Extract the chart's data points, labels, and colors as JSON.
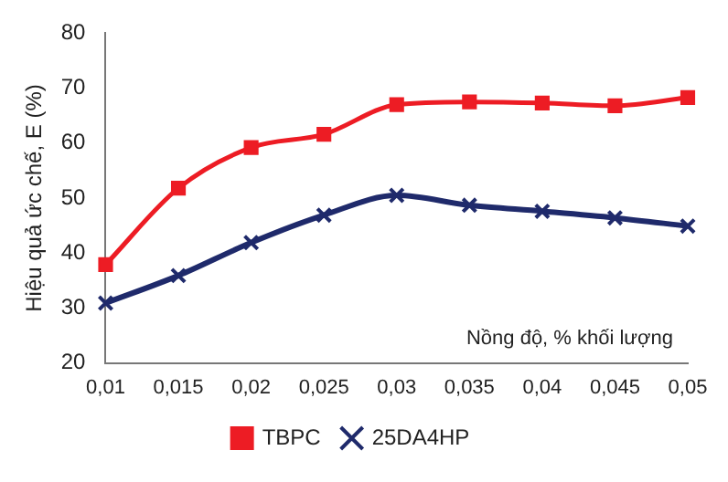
{
  "chart_data": {
    "type": "line",
    "xlabel": "Nồng độ, % khối lượng",
    "ylabel": "Hiệu quả ức chế, E (%)",
    "x": [
      0.01,
      0.015,
      0.02,
      0.025,
      0.03,
      0.035,
      0.04,
      0.045,
      0.05
    ],
    "series": [
      {
        "name": "TBPC",
        "color": "#ed1c24",
        "marker": "square",
        "values": [
          37.9,
          51.8,
          59.2,
          61.6,
          67,
          67.5,
          67.3,
          66.8,
          68.3
        ]
      },
      {
        "name": "25DA4HP",
        "color": "#1f2a6b",
        "marker": "cross",
        "values": [
          30.9,
          35.9,
          41.9,
          46.9,
          50.5,
          48.7,
          47.6,
          46.4,
          44.9
        ]
      }
    ],
    "xlim": [
      0.01,
      0.05
    ],
    "xticks": [
      {
        "value": 0.01,
        "label": "0,01"
      },
      {
        "value": 0.015,
        "label": "0,015"
      },
      {
        "value": 0.02,
        "label": "0,02"
      },
      {
        "value": 0.025,
        "label": "0,025"
      },
      {
        "value": 0.03,
        "label": "0,03"
      },
      {
        "value": 0.035,
        "label": "0,035"
      },
      {
        "value": 0.04,
        "label": "0,04"
      },
      {
        "value": 0.045,
        "label": "0,045"
      },
      {
        "value": 0.05,
        "label": "0,05"
      }
    ],
    "ylim": [
      20,
      80
    ],
    "yticks": [
      20,
      30,
      40,
      50,
      60,
      70,
      80
    ],
    "grid": false,
    "legend": "bottom",
    "line_style": "solid"
  }
}
